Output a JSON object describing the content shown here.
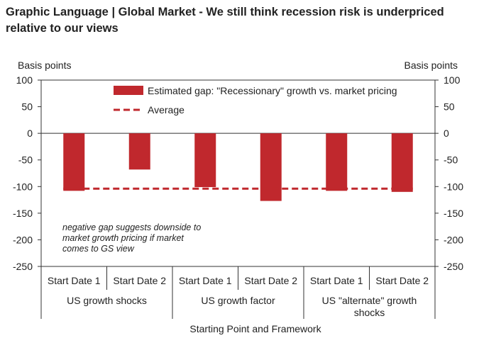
{
  "header": {
    "title": "Graphic Language | Global Market - We still think recession risk is underpriced relative to our views"
  },
  "chart_data": {
    "type": "bar",
    "title": "Graphic Language | Global Market - We still think recession risk is underpriced relative to our views",
    "ylabel_left": "Basis points",
    "ylabel_right": "Basis points",
    "xlabel": "Starting Point and Framework",
    "ylim": [
      -250,
      100
    ],
    "yticks": [
      100,
      50,
      0,
      -50,
      -100,
      -150,
      -200,
      -250
    ],
    "categories": [
      "Start Date 1",
      "Start Date 2",
      "Start Date 1",
      "Start Date 2",
      "Start Date 1",
      "Start Date 2"
    ],
    "groups": [
      {
        "label": "US growth shocks",
        "span": 2
      },
      {
        "label": "US growth factor",
        "span": 2
      },
      {
        "label": "US \"alternate\" growth shocks",
        "span": 2
      }
    ],
    "series": [
      {
        "name": "Estimated gap: \"Recessionary\" growth vs. market pricing",
        "kind": "bar",
        "values": [
          -108,
          -68,
          -101,
          -127,
          -108,
          -110
        ]
      },
      {
        "name": "Average",
        "kind": "dashed-line",
        "value": -104
      }
    ],
    "legend": "top-center",
    "annotation": "negative gap suggests downside to market growth pricing if market comes to GS view",
    "colors": {
      "bar": "#c0282d",
      "average": "#c0282d",
      "axis": "#333333"
    }
  }
}
